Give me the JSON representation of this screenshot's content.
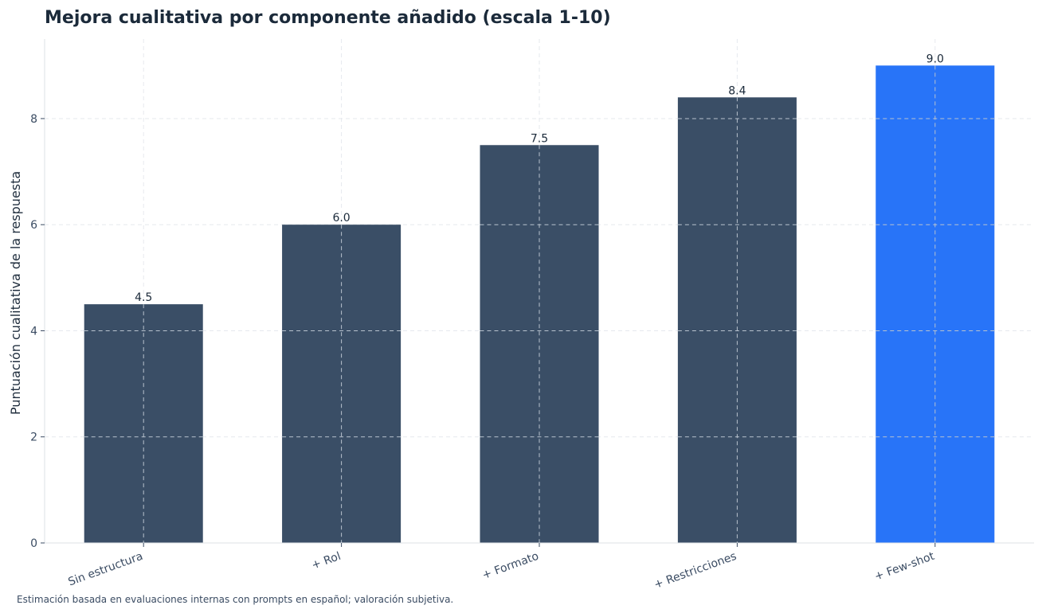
{
  "chart_data": {
    "type": "bar",
    "title": "Mejora cualitativa por componente añadido (escala 1-10)",
    "xlabel": "",
    "ylabel": "Puntuación cualitativa de la respuesta",
    "categories": [
      "Sin estructura",
      "+ Rol",
      "+ Formato",
      "+ Restricciones",
      "+ Few-shot"
    ],
    "values": [
      4.5,
      6.0,
      7.5,
      8.4,
      9.0
    ],
    "value_labels": [
      "4.5",
      "6.0",
      "7.5",
      "8.4",
      "9.0"
    ],
    "ylim": [
      0,
      9.5
    ],
    "yticks": [
      0,
      2,
      4,
      6,
      8
    ],
    "ytick_labels": [
      "0",
      "2",
      "4",
      "6",
      "8"
    ],
    "grid": true,
    "colors": {
      "bar": "#3a4e66",
      "highlight": "#2874f8",
      "grid": "#e6e9ee",
      "grid_overlay": "#b8c2ce",
      "axis": "#dde1e6"
    },
    "highlight_index": 4,
    "footnote": "Estimación basada en evaluaciones internas con prompts en español; valoración subjetiva."
  }
}
